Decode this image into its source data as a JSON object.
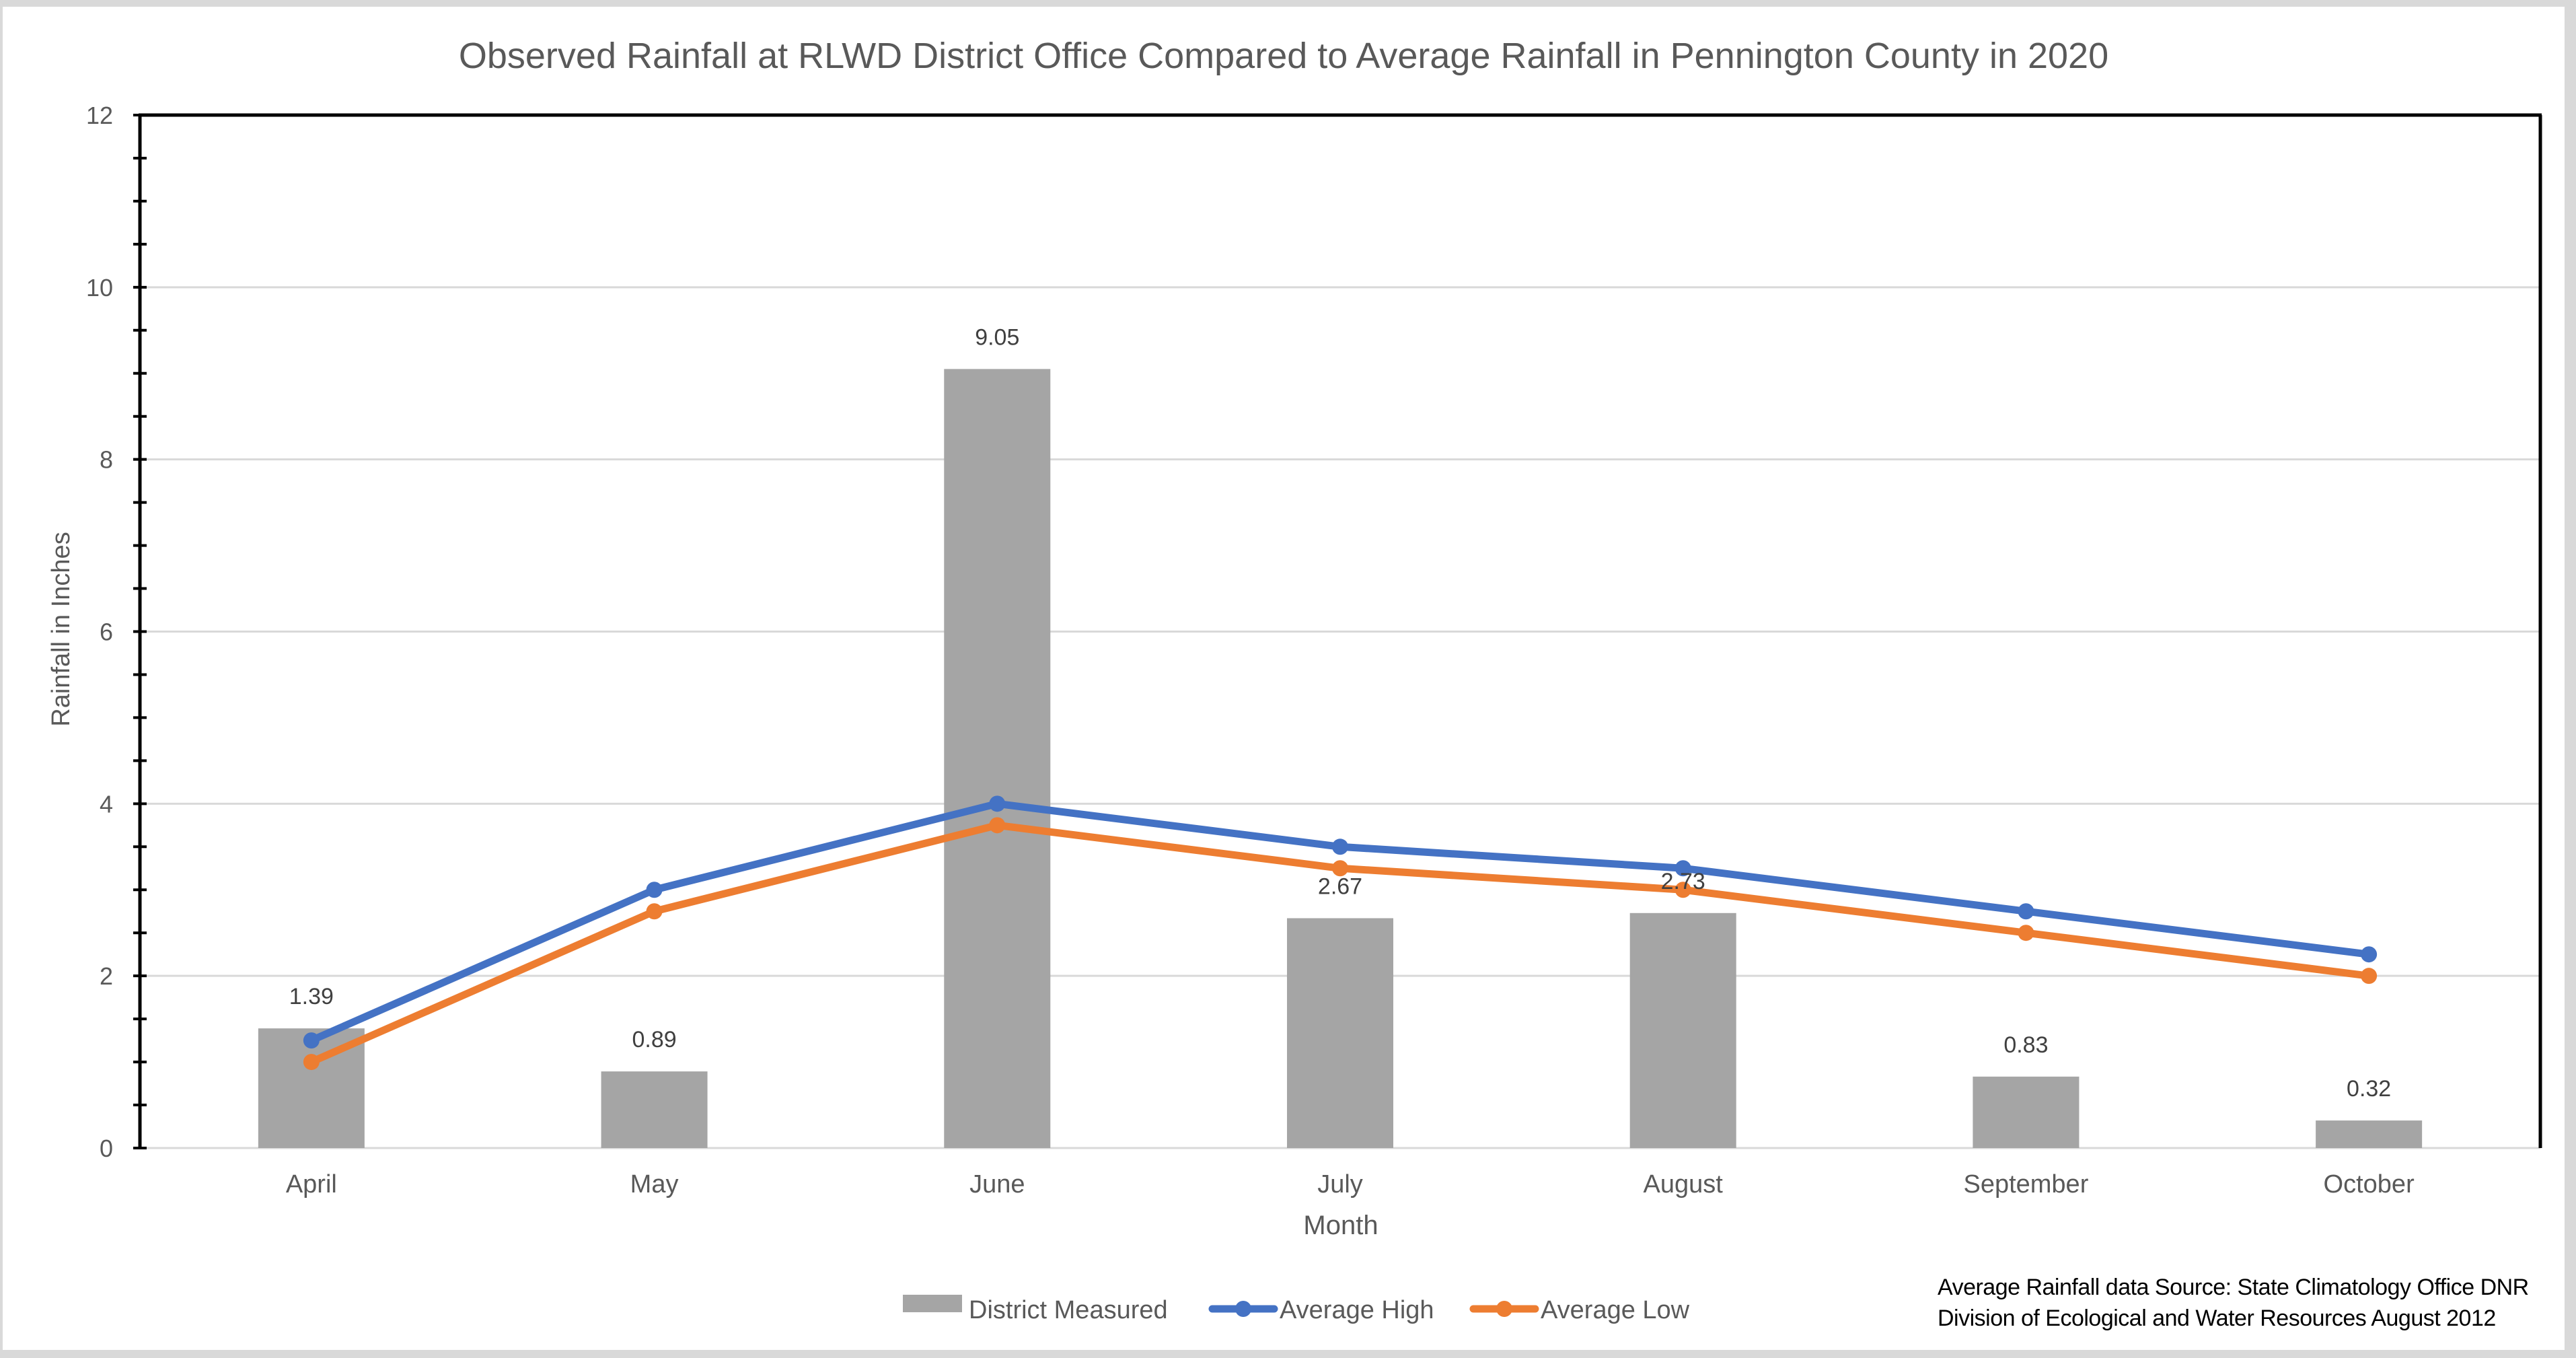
{
  "chart_data": {
    "type": "bar+line",
    "title": "Observed Rainfall at RLWD District Office Compared to Average Rainfall in Pennington County in 2020",
    "xlabel": "Month",
    "ylabel": "Rainfall in Inches",
    "categories": [
      "April",
      "May",
      "June",
      "July",
      "August",
      "September",
      "October"
    ],
    "ylim": [
      0,
      12
    ],
    "y_major_ticks": [
      0,
      2,
      4,
      6,
      8,
      10,
      12
    ],
    "y_minor_step": 0.5,
    "grid": true,
    "legend_position": "bottom",
    "series": [
      {
        "name": "District Measured",
        "type": "bar",
        "color": "#a5a5a5",
        "values": [
          1.39,
          0.89,
          9.05,
          2.67,
          2.73,
          0.83,
          0.32
        ],
        "labels": [
          "1.39",
          "0.89",
          "9.05",
          "2.67",
          "2.73",
          "0.83",
          "0.32"
        ]
      },
      {
        "name": "Average High",
        "type": "line",
        "color": "#4472c4",
        "values": [
          1.25,
          3.0,
          4.0,
          3.5,
          3.25,
          2.75,
          2.25
        ]
      },
      {
        "name": "Average Low",
        "type": "line",
        "color": "#ed7d31",
        "values": [
          1.0,
          2.75,
          3.75,
          3.25,
          3.0,
          2.5,
          2.0
        ]
      }
    ],
    "annotation": [
      "Average Rainfall data Source: State Climatology Office DNR",
      "Division of Ecological and Water Resources August 2012"
    ]
  }
}
